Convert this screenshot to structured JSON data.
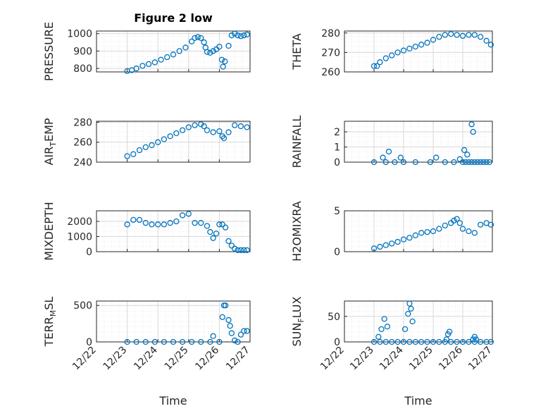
{
  "figure_title": "Figure 2 low",
  "colors": {
    "series": "#0072BD",
    "axis": "#262626",
    "grid": "#d9d9d9",
    "minor_grid": "#e6e6e6"
  },
  "chart_data": [
    {
      "id": "pressure",
      "type": "scatter",
      "ylabel": "PRESSURE",
      "title": "Figure 2 low",
      "yticks": [
        800,
        900,
        1000
      ],
      "ylim": [
        780,
        1015
      ],
      "xlim": [
        0,
        5
      ],
      "grid": true,
      "show_xticks": false,
      "x": [
        1.0,
        1.15,
        1.3,
        1.5,
        1.7,
        1.9,
        2.1,
        2.3,
        2.5,
        2.7,
        2.9,
        3.1,
        3.2,
        3.3,
        3.4,
        3.5,
        3.55,
        3.6,
        3.7,
        3.8,
        3.9,
        4.0,
        4.08,
        4.12,
        4.18,
        4.3,
        4.4,
        4.5,
        4.6,
        4.7,
        4.8,
        4.9
      ],
      "y": [
        785,
        790,
        800,
        815,
        825,
        835,
        850,
        865,
        880,
        900,
        920,
        955,
        975,
        980,
        975,
        950,
        920,
        895,
        890,
        900,
        910,
        925,
        850,
        810,
        840,
        930,
        990,
        1000,
        990,
        985,
        990,
        995
      ]
    },
    {
      "id": "theta",
      "type": "scatter",
      "ylabel": "THETA",
      "yticks": [
        260,
        270,
        280
      ],
      "ylim": [
        260,
        281
      ],
      "xlim": [
        0,
        5
      ],
      "grid": true,
      "show_xticks": false,
      "x": [
        1.0,
        1.1,
        1.2,
        1.4,
        1.6,
        1.8,
        2.0,
        2.2,
        2.4,
        2.6,
        2.8,
        3.0,
        3.2,
        3.4,
        3.6,
        3.8,
        4.0,
        4.2,
        4.4,
        4.6,
        4.8,
        4.95
      ],
      "y": [
        263,
        263,
        265,
        267,
        268.5,
        270,
        271,
        272,
        273,
        274,
        275,
        276.5,
        278,
        279,
        279.5,
        279,
        278.5,
        279,
        279,
        278,
        276,
        274
      ]
    },
    {
      "id": "air_temp",
      "type": "scatter",
      "ylabel": "AIR_TEMP",
      "yticks": [
        240,
        260,
        280
      ],
      "ylim": [
        240,
        281
      ],
      "xlim": [
        0,
        5
      ],
      "grid": true,
      "show_xticks": false,
      "x": [
        1.0,
        1.2,
        1.4,
        1.6,
        1.8,
        2.0,
        2.2,
        2.4,
        2.6,
        2.8,
        3.0,
        3.2,
        3.4,
        3.5,
        3.6,
        3.8,
        4.0,
        4.1,
        4.15,
        4.3,
        4.5,
        4.7,
        4.9
      ],
      "y": [
        246,
        248,
        252,
        255,
        257,
        260,
        263,
        266,
        269,
        272,
        275,
        277,
        278,
        276,
        272,
        270,
        271,
        266,
        264,
        270,
        277,
        276,
        275
      ]
    },
    {
      "id": "rainfall",
      "type": "scatter",
      "ylabel": "RAINFALL",
      "yticks": [
        0,
        1,
        2
      ],
      "ylim": [
        0,
        2.7
      ],
      "xlim": [
        0,
        5
      ],
      "grid": true,
      "show_xticks": false,
      "x": [
        1.0,
        1.4,
        1.7,
        2.0,
        2.4,
        2.9,
        3.4,
        3.7,
        4.0,
        4.1,
        4.2,
        4.3,
        4.4,
        4.5,
        4.6,
        4.7,
        4.8,
        4.9,
        1.3,
        1.5,
        1.9,
        3.1,
        3.9,
        4.05,
        4.15,
        4.3,
        4.35
      ],
      "y": [
        0,
        0,
        0,
        0,
        0,
        0,
        0,
        0,
        0,
        0,
        0,
        0,
        0,
        0,
        0,
        0,
        0,
        0,
        0.3,
        0.7,
        0.3,
        0.3,
        0.2,
        0.8,
        0.5,
        2.5,
        2.0
      ]
    },
    {
      "id": "mixdepth",
      "type": "scatter",
      "ylabel": "MIXDEPTH",
      "yticks": [
        0,
        1000,
        2000
      ],
      "ylim": [
        0,
        2700
      ],
      "xlim": [
        0,
        5
      ],
      "grid": true,
      "show_xticks": false,
      "x": [
        1.0,
        1.2,
        1.4,
        1.6,
        1.8,
        2.0,
        2.2,
        2.4,
        2.6,
        2.8,
        3.0,
        3.2,
        3.4,
        3.6,
        3.7,
        3.8,
        3.9,
        4.0,
        4.1,
        4.2,
        4.3,
        4.4,
        4.5,
        4.6,
        4.7,
        4.8,
        4.9
      ],
      "y": [
        1800,
        2100,
        2100,
        1900,
        1800,
        1800,
        1800,
        1900,
        2000,
        2400,
        2500,
        1900,
        1900,
        1700,
        1300,
        900,
        1200,
        1800,
        1800,
        1600,
        700,
        400,
        200,
        100,
        100,
        100,
        100
      ]
    },
    {
      "id": "h2omixra",
      "type": "scatter",
      "ylabel": "H2OMIXRA",
      "yticks": [
        0,
        5
      ],
      "ylim": [
        0,
        5
      ],
      "xlim": [
        0,
        5
      ],
      "grid": true,
      "show_xticks": false,
      "x": [
        1.0,
        1.2,
        1.4,
        1.6,
        1.8,
        2.0,
        2.2,
        2.4,
        2.6,
        2.8,
        3.0,
        3.2,
        3.4,
        3.6,
        3.7,
        3.8,
        3.9,
        4.0,
        4.2,
        4.4,
        4.6,
        4.8,
        4.95
      ],
      "y": [
        0.4,
        0.6,
        0.8,
        1.0,
        1.2,
        1.5,
        1.7,
        2.0,
        2.3,
        2.4,
        2.5,
        2.8,
        3.2,
        3.5,
        3.8,
        4.0,
        3.5,
        2.8,
        2.5,
        2.3,
        3.3,
        3.5,
        3.3
      ]
    },
    {
      "id": "terr_msl",
      "type": "scatter",
      "ylabel": "TERR_MSL",
      "yticks": [
        0,
        500
      ],
      "ylim": [
        0,
        560
      ],
      "xlim": [
        0,
        5
      ],
      "grid": true,
      "show_xticks": true,
      "xticks": [
        "12/22",
        "12/23",
        "12/24",
        "12/25",
        "12/26",
        "12/27"
      ],
      "xlabel": "Time",
      "x": [
        1.0,
        1.3,
        1.6,
        1.9,
        2.2,
        2.5,
        2.8,
        3.1,
        3.4,
        3.7,
        3.8,
        4.0,
        4.1,
        4.15,
        4.2,
        4.3,
        4.35,
        4.4,
        4.5,
        4.6,
        4.7,
        4.8,
        4.9
      ],
      "y": [
        0,
        0,
        0,
        0,
        0,
        0,
        0,
        0,
        0,
        0,
        80,
        0,
        340,
        500,
        500,
        300,
        220,
        120,
        20,
        0,
        100,
        150,
        150
      ]
    },
    {
      "id": "sun_flux",
      "type": "scatter",
      "ylabel": "SUN_FLUX",
      "yticks": [
        0,
        50
      ],
      "ylim": [
        0,
        80
      ],
      "xlim": [
        0,
        5
      ],
      "grid": true,
      "show_xticks": true,
      "xticks": [
        "12/22",
        "12/23",
        "12/24",
        "12/25",
        "12/26",
        "12/27"
      ],
      "xlabel": "Time",
      "x": [
        1.0,
        1.2,
        1.4,
        1.6,
        1.8,
        2.0,
        2.2,
        2.4,
        2.6,
        2.8,
        3.0,
        3.2,
        3.4,
        3.6,
        3.8,
        4.0,
        4.2,
        4.4,
        4.6,
        4.8,
        4.95,
        1.15,
        1.25,
        1.35,
        1.45,
        2.05,
        2.15,
        2.2,
        2.25,
        2.3,
        3.45,
        3.5,
        3.55,
        4.35,
        4.4,
        4.45
      ],
      "y": [
        0,
        0,
        0,
        0,
        0,
        0,
        0,
        0,
        0,
        0,
        0,
        0,
        0,
        0,
        0,
        0,
        0,
        0,
        0,
        0,
        0,
        10,
        25,
        45,
        30,
        25,
        55,
        75,
        65,
        40,
        5,
        15,
        20,
        5,
        10,
        5
      ]
    }
  ]
}
